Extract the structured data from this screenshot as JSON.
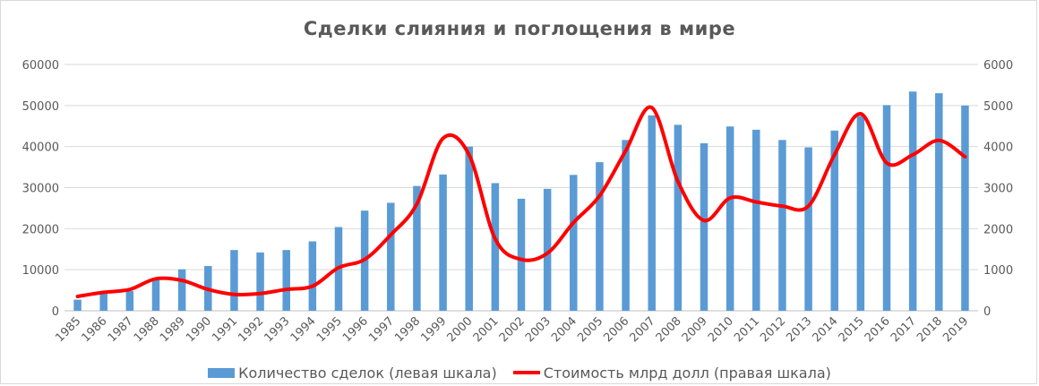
{
  "chart_data": {
    "type": "bar",
    "title": "Сделки слияния и поглощения в мире",
    "categories": [
      "1985",
      "1986",
      "1987",
      "1988",
      "1989",
      "1990",
      "1991",
      "1992",
      "1993",
      "1994",
      "1995",
      "1996",
      "1997",
      "1998",
      "1999",
      "2000",
      "2001",
      "2002",
      "2003",
      "2004",
      "2005",
      "2006",
      "2007",
      "2008",
      "2009",
      "2010",
      "2011",
      "2012",
      "2013",
      "2014",
      "2015",
      "2016",
      "2017",
      "2018",
      "2019"
    ],
    "series": [
      {
        "name": "Количество сделок (левая шкала)",
        "type": "bar",
        "axis": "left",
        "color": "#5b9bd5",
        "values": [
          2700,
          4500,
          4800,
          7800,
          10100,
          10900,
          14800,
          14200,
          14800,
          16900,
          20400,
          24400,
          26300,
          30400,
          33200,
          40000,
          31100,
          27300,
          29700,
          33100,
          36200,
          41600,
          47600,
          45300,
          40800,
          44900,
          44100,
          41600,
          39800,
          43900,
          47500,
          50100,
          53400,
          53000,
          50000
        ]
      },
      {
        "name": "Стоимость млрд долл (правая шкала)",
        "type": "line",
        "axis": "right",
        "color": "#ff0000",
        "values": [
          350,
          450,
          520,
          780,
          740,
          520,
          400,
          420,
          520,
          600,
          1050,
          1250,
          1850,
          2600,
          4200,
          3800,
          1750,
          1250,
          1400,
          2150,
          2800,
          3900,
          4950,
          3150,
          2200,
          2750,
          2650,
          2550,
          2550,
          3800,
          4800,
          3600,
          3800,
          4150,
          3750
        ]
      }
    ],
    "y_left": {
      "range": [
        0,
        60000
      ],
      "ticks": [
        "0",
        "10000",
        "20000",
        "30000",
        "40000",
        "50000",
        "60000"
      ]
    },
    "y_right": {
      "range": [
        0,
        6000
      ],
      "ticks": [
        "0",
        "1000",
        "2000",
        "3000",
        "4000",
        "5000",
        "6000"
      ]
    },
    "grid": true,
    "legend_position": "bottom"
  }
}
